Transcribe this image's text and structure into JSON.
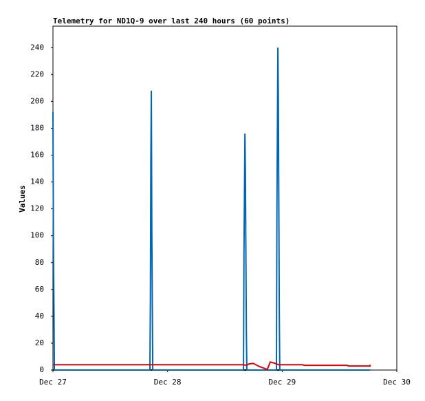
{
  "chart_data": {
    "type": "line",
    "title": "Telemetry for ND1Q-9 over last 240 hours (60 points)",
    "y_label": "Values",
    "xlim": [
      0,
      72
    ],
    "xticks": [
      {
        "value": 0,
        "label": "Dec 27"
      },
      {
        "value": 24,
        "label": "Dec 28"
      },
      {
        "value": 48,
        "label": "Dec 29"
      },
      {
        "value": 72,
        "label": "Dec 30"
      }
    ],
    "ylim": [
      0,
      256
    ],
    "yticks": [
      0,
      20,
      40,
      60,
      80,
      100,
      120,
      140,
      160,
      180,
      200,
      220,
      240
    ],
    "series": [
      {
        "color": "#000000",
        "x": [
          0,
          66.4
        ],
        "values": [
          0,
          0
        ]
      },
      {
        "color": "#0066b3",
        "x": [
          0,
          0.1,
          0.3,
          20.3,
          20.4,
          20.5,
          20.6,
          20.7,
          20.9,
          39.9,
          40.0,
          40.2,
          40.3,
          40.5,
          40.6,
          46.8,
          46.9,
          47.1,
          47.2,
          47.4,
          47.5,
          66.4
        ],
        "values": [
          192,
          97,
          0,
          0,
          52,
          156,
          208,
          104,
          0,
          0,
          88,
          176,
          147,
          29,
          0,
          0,
          121,
          240,
          200,
          40,
          0,
          0
        ]
      },
      {
        "color": "#e00000",
        "x": [
          0,
          39.9,
          40.5,
          41.0,
          41.9,
          43.3,
          44.9,
          45.5,
          46.5,
          47.2,
          52.3,
          52.6,
          61.6,
          61.9,
          66.4,
          66.4
        ],
        "values": [
          4,
          4,
          3.5,
          4.5,
          5,
          2.5,
          0.5,
          6,
          5,
          4,
          4,
          3.5,
          3.5,
          3,
          3,
          4
        ]
      }
    ]
  }
}
